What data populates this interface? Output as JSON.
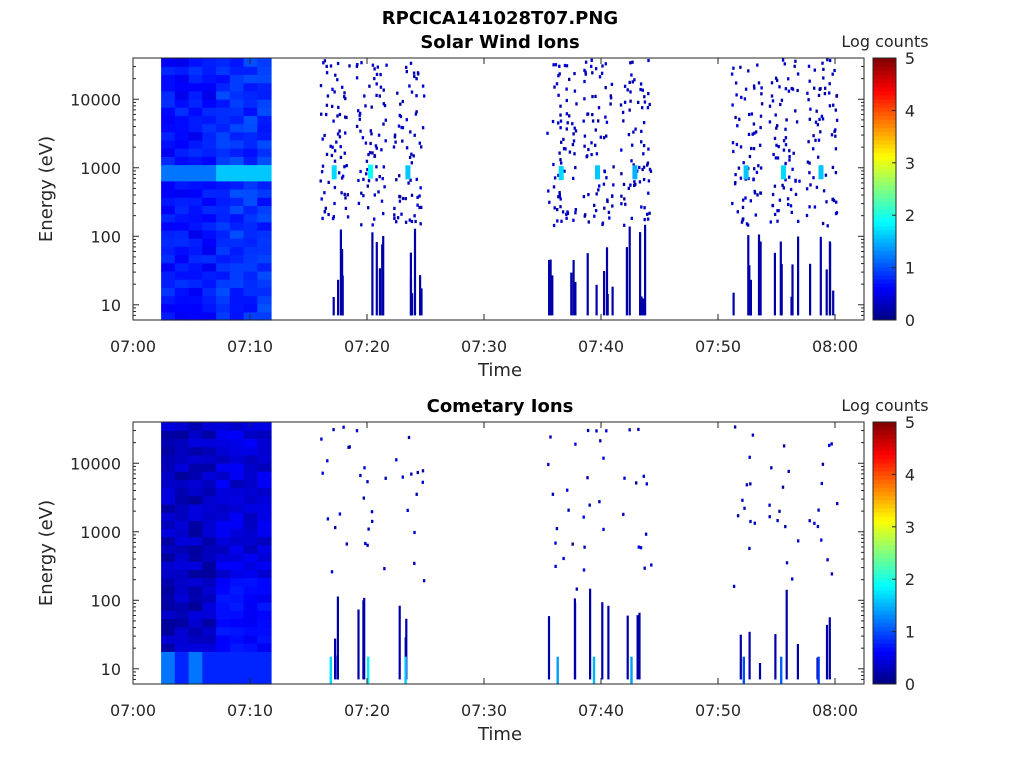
{
  "figure_title": "RPCICA141028T07.PNG",
  "chart_data": [
    {
      "type": "heatmap",
      "title": "Solar Wind Ions",
      "xlabel": "Time",
      "ylabel": "Energy (eV)",
      "colorbar_label": "Log counts",
      "y_scale": "log",
      "ylim": [
        6,
        40000
      ],
      "y_ticks": [
        10,
        100,
        1000,
        10000
      ],
      "y_tick_labels": [
        "10",
        "100",
        "1000",
        "10000"
      ],
      "x_ticks_min": [
        0,
        10,
        20,
        30,
        40,
        50,
        60
      ],
      "x_tick_labels": [
        "07:00",
        "07:10",
        "07:20",
        "07:30",
        "07:40",
        "07:50",
        "08:00"
      ],
      "colorbar_ticks": [
        0,
        1,
        2,
        3,
        4,
        5
      ],
      "colorbar_range": [
        0,
        5
      ],
      "colormap": "jet",
      "dense_block": {
        "t_start_min": 2.4,
        "t_end_min": 11.8,
        "typical_level": 0.7,
        "peak_energy_eV": 880,
        "peak_level": 1.6
      },
      "bursts": [
        {
          "t_min": 17.2,
          "peak_energy_eV": 860,
          "peak_level": 1.7
        },
        {
          "t_min": 20.3,
          "peak_energy_eV": 880,
          "peak_level": 1.9
        },
        {
          "t_min": 23.5,
          "peak_energy_eV": 860,
          "peak_level": 1.6
        },
        {
          "t_min": 36.6,
          "peak_energy_eV": 840,
          "peak_level": 1.7
        },
        {
          "t_min": 39.7,
          "peak_energy_eV": 860,
          "peak_level": 1.6
        },
        {
          "t_min": 42.9,
          "peak_energy_eV": 860,
          "peak_level": 1.5
        },
        {
          "t_min": 52.4,
          "peak_energy_eV": 860,
          "peak_level": 1.6
        },
        {
          "t_min": 55.6,
          "peak_energy_eV": 860,
          "peak_level": 1.7
        },
        {
          "t_min": 58.8,
          "peak_energy_eV": 860,
          "peak_level": 1.6
        }
      ],
      "grid": false
    },
    {
      "type": "heatmap",
      "title": "Cometary Ions",
      "xlabel": "Time",
      "ylabel": "Energy (eV)",
      "colorbar_label": "Log counts",
      "y_scale": "log",
      "ylim": [
        6,
        40000
      ],
      "y_ticks": [
        10,
        100,
        1000,
        10000
      ],
      "y_tick_labels": [
        "10",
        "100",
        "1000",
        "10000"
      ],
      "x_ticks_min": [
        0,
        10,
        20,
        30,
        40,
        50,
        60
      ],
      "x_tick_labels": [
        "07:00",
        "07:10",
        "07:20",
        "07:30",
        "07:40",
        "07:50",
        "08:00"
      ],
      "colorbar_ticks": [
        0,
        1,
        2,
        3,
        4,
        5
      ],
      "colorbar_range": [
        0,
        5
      ],
      "colormap": "jet",
      "dense_block": {
        "t_start_min": 2.4,
        "t_end_min": 11.8,
        "typical_level": 0.3,
        "low_energy_level": 1.0
      },
      "low_energy_lines": [
        {
          "t_min": 16.8,
          "level": 1.7
        },
        {
          "t_min": 20.0,
          "level": 1.8
        },
        {
          "t_min": 23.2,
          "level": 1.6
        },
        {
          "t_min": 36.2,
          "level": 1.4
        },
        {
          "t_min": 39.3,
          "level": 1.5
        },
        {
          "t_min": 42.5,
          "level": 1.4
        },
        {
          "t_min": 52.1,
          "level": 1.0
        },
        {
          "t_min": 55.3,
          "level": 1.1
        },
        {
          "t_min": 58.5,
          "level": 0.9
        }
      ],
      "bursts_t_min": [
        17.2,
        20.3,
        23.5,
        36.6,
        39.7,
        42.9,
        52.4,
        55.6,
        58.8
      ],
      "grid": false
    }
  ]
}
